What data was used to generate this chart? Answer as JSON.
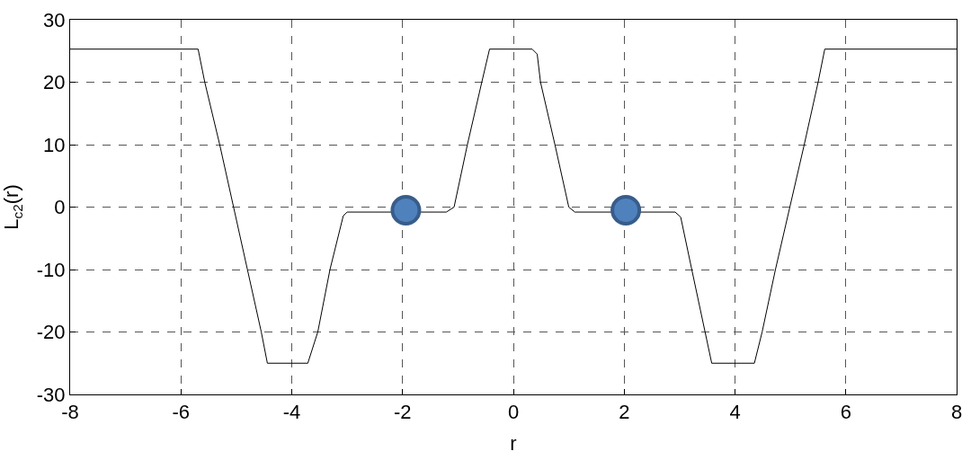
{
  "chart_data": {
    "type": "line",
    "xlabel": "r",
    "ylabel": "L$_{c2}$(r)",
    "xlim": [
      -8,
      8
    ],
    "xticks": [
      -8,
      -6,
      -4,
      -2,
      0,
      2,
      4,
      6,
      8
    ],
    "ylim": [
      -30,
      30
    ],
    "yticks": [
      -30,
      -20,
      -10,
      0,
      10,
      20,
      30
    ],
    "grid": true,
    "marker": "none",
    "line_style": "solid",
    "series": [
      {
        "color": "#000000",
        "x": [
          -8,
          -5.69,
          -5.57,
          -5.3,
          -5.05,
          -4.8,
          -4.55,
          -4.44,
          -3.71,
          -3.53,
          -3.31,
          -3.07,
          -3.0,
          -1.21,
          -1.07,
          -0.83,
          -0.57,
          -0.43,
          0.34,
          0.43,
          0.49,
          0.75,
          1.0,
          1.11,
          2.92,
          3.02,
          3.22,
          3.46,
          3.58,
          4.35,
          4.49,
          4.73,
          4.99,
          5.25,
          5.5,
          5.62,
          8
        ],
        "values": [
          25.3,
          25.3,
          20,
          10,
          0,
          -10,
          -20,
          -25,
          -25,
          -20,
          -10,
          -1.4,
          -0.8,
          -0.8,
          0,
          10,
          20,
          25.3,
          25.3,
          24.5,
          20,
          10,
          0,
          -0.8,
          -0.8,
          -1.6,
          -10,
          -20,
          -25,
          -25,
          -20,
          -10,
          0,
          10,
          20,
          25.3,
          25.3
        ]
      },
      {
        "type": "scatter",
        "marker": "circle",
        "color": "#4f81bd",
        "x": [
          -1.94,
          2.03
        ],
        "values": [
          -0.5,
          -0.5
        ]
      }
    ]
  }
}
